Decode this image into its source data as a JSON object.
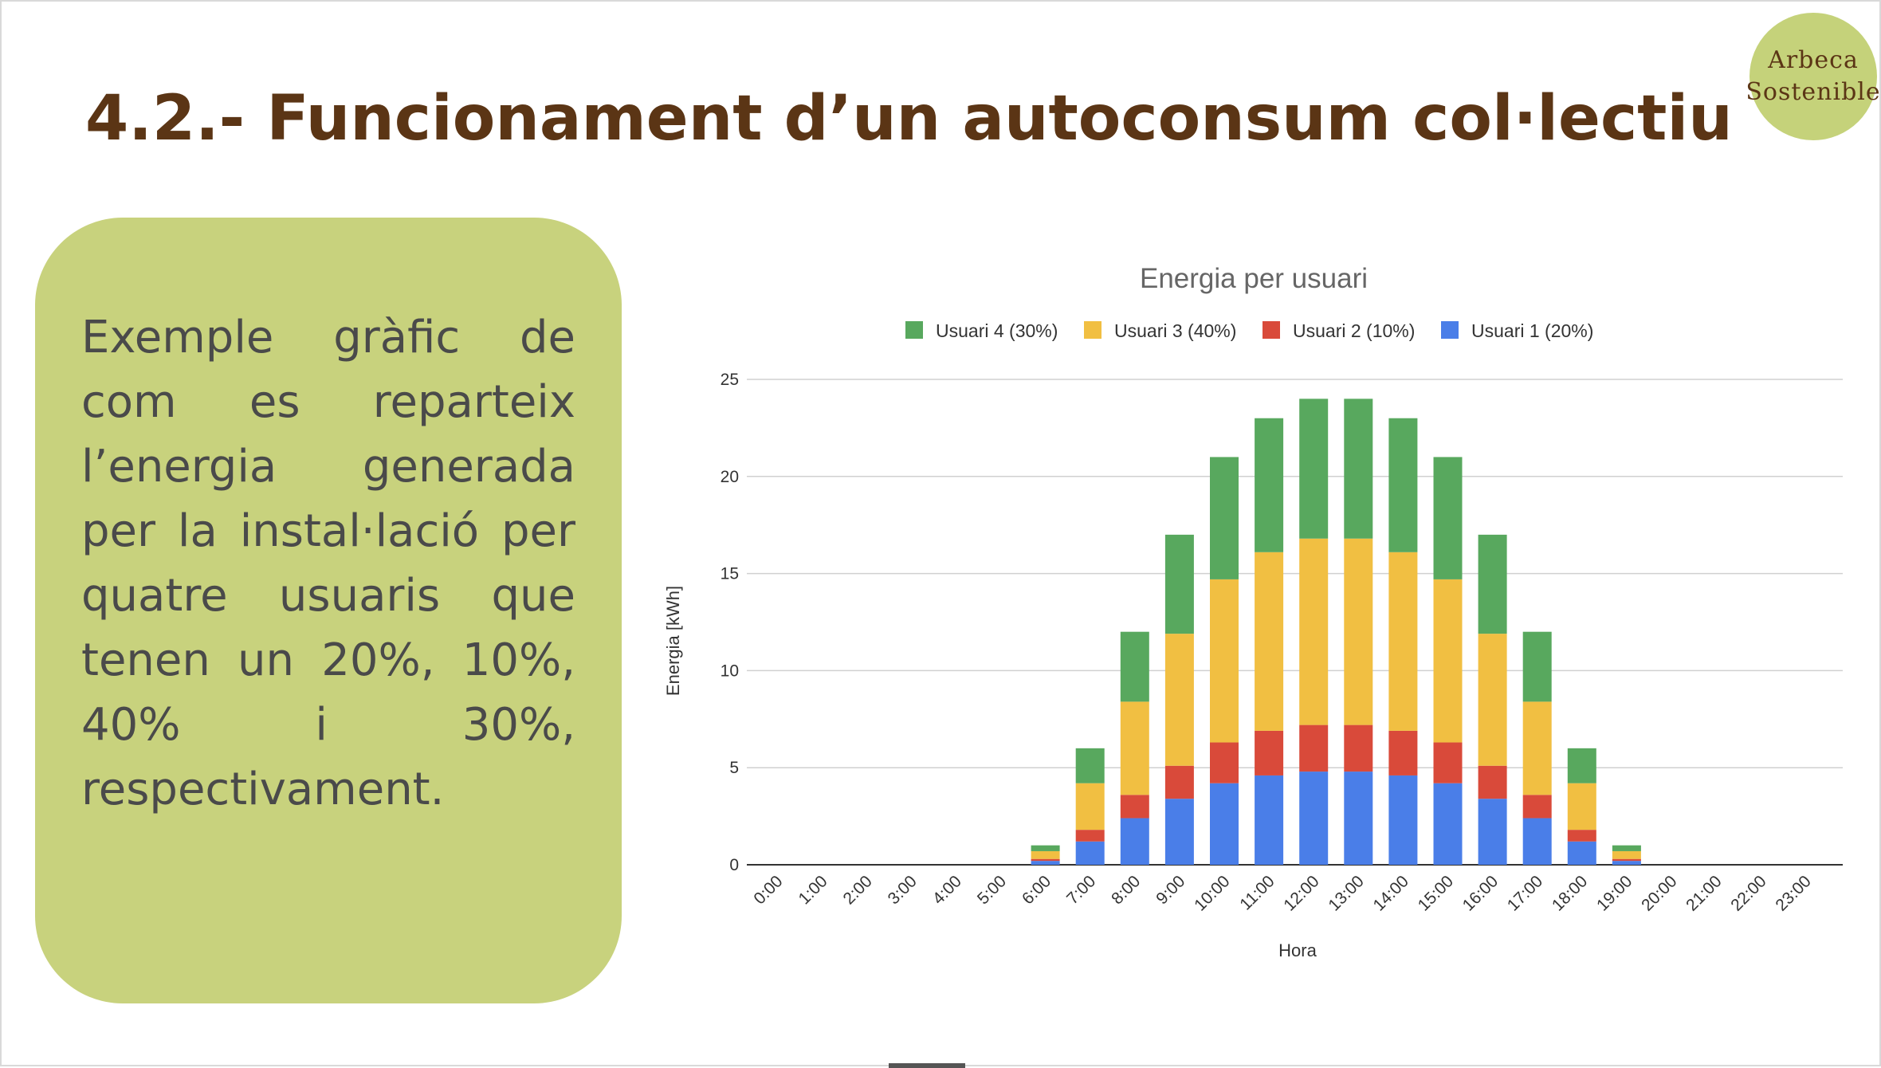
{
  "slide": {
    "title": "4.2.- Funcionament d’un autoconsum col·lectiu",
    "logo_line1": "Arbeca",
    "logo_line2": "Sostenible",
    "description": "Exemple gràfic de com es reparteix l’energia generada per la instal·lació per quatre usuaris que tenen un 20%, 10%, 40% i 30%, respectivament."
  },
  "colors": {
    "title": "#5b3515",
    "panel": "#c8d27d",
    "logo": "#c5d27a",
    "usuari1": "#4a7ee8",
    "usuari2": "#d94a3a",
    "usuari3": "#f1bf42",
    "usuari4": "#58a85e"
  },
  "chart_data": {
    "type": "bar",
    "stacked": true,
    "title": "Energia per usuari",
    "xlabel": "Hora",
    "ylabel": "Energia [kWh]",
    "ylim": [
      0,
      25
    ],
    "yticks": [
      0,
      5,
      10,
      15,
      20,
      25
    ],
    "grid": true,
    "legend_position": "top",
    "legend_order": [
      "Usuari 4 (30%)",
      "Usuari 3 (40%)",
      "Usuari 2 (10%)",
      "Usuari 1 (20%)"
    ],
    "categories": [
      "0:00",
      "1:00",
      "2:00",
      "3:00",
      "4:00",
      "5:00",
      "6:00",
      "7:00",
      "8:00",
      "9:00",
      "10:00",
      "11:00",
      "12:00",
      "13:00",
      "14:00",
      "15:00",
      "16:00",
      "17:00",
      "18:00",
      "19:00",
      "20:00",
      "21:00",
      "22:00",
      "23:00"
    ],
    "series": [
      {
        "name": "Usuari 1 (20%)",
        "color": "#4a7ee8",
        "values": [
          0,
          0,
          0,
          0,
          0,
          0,
          0.2,
          1.2,
          2.4,
          3.4,
          4.2,
          4.6,
          4.8,
          4.8,
          4.6,
          4.2,
          3.4,
          2.4,
          1.2,
          0.2,
          0,
          0,
          0,
          0
        ]
      },
      {
        "name": "Usuari 2 (10%)",
        "color": "#d94a3a",
        "values": [
          0,
          0,
          0,
          0,
          0,
          0,
          0.1,
          0.6,
          1.2,
          1.7,
          2.1,
          2.3,
          2.4,
          2.4,
          2.3,
          2.1,
          1.7,
          1.2,
          0.6,
          0.1,
          0,
          0,
          0,
          0
        ]
      },
      {
        "name": "Usuari 3 (40%)",
        "color": "#f1bf42",
        "values": [
          0,
          0,
          0,
          0,
          0,
          0,
          0.4,
          2.4,
          4.8,
          6.8,
          8.4,
          9.2,
          9.6,
          9.6,
          9.2,
          8.4,
          6.8,
          4.8,
          2.4,
          0.4,
          0,
          0,
          0,
          0
        ]
      },
      {
        "name": "Usuari 4 (30%)",
        "color": "#58a85e",
        "values": [
          0,
          0,
          0,
          0,
          0,
          0,
          0.3,
          1.8,
          3.6,
          5.1,
          6.3,
          6.9,
          7.2,
          7.2,
          6.9,
          6.3,
          5.1,
          3.6,
          1.8,
          0.3,
          0,
          0,
          0,
          0
        ]
      }
    ]
  }
}
